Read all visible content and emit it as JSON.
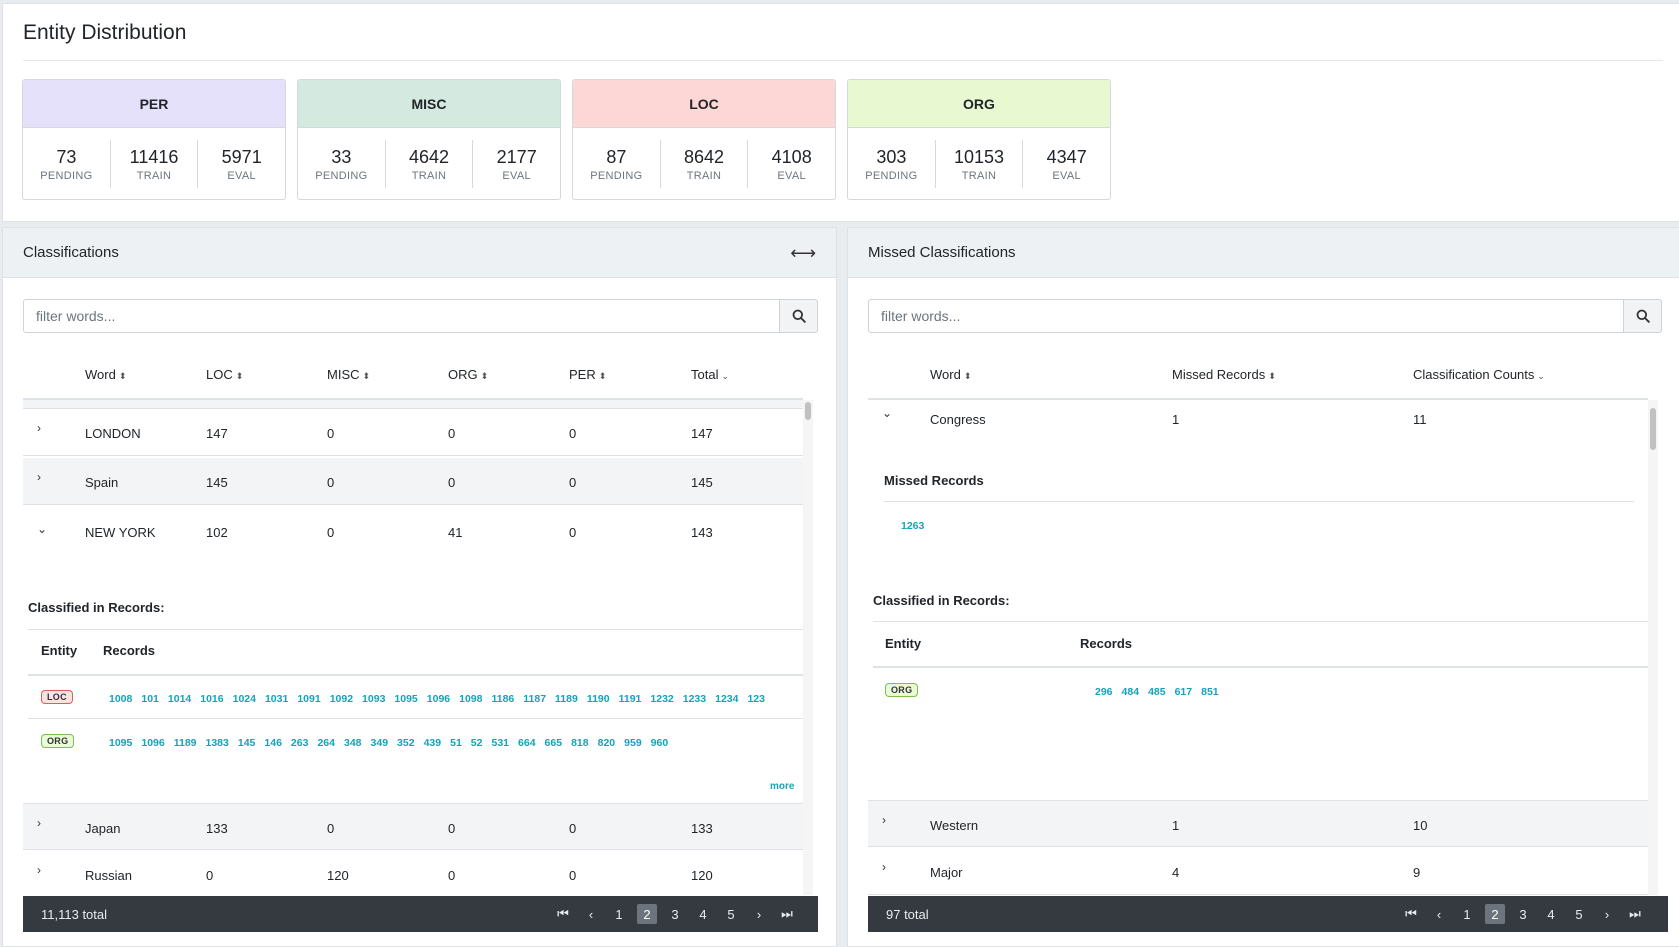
{
  "page_title": "Entity Distribution",
  "entities": [
    {
      "name": "PER",
      "color": "#e5e1fb",
      "pending": "73",
      "train": "11416",
      "eval": "5971"
    },
    {
      "name": "MISC",
      "color": "#d4e9df",
      "pending": "33",
      "train": "4642",
      "eval": "2177"
    },
    {
      "name": "LOC",
      "color": "#fdd6d6",
      "pending": "87",
      "train": "8642",
      "eval": "4108"
    },
    {
      "name": "ORG",
      "color": "#e8f8d0",
      "pending": "303",
      "train": "10153",
      "eval": "4347"
    }
  ],
  "stat_labels": {
    "pending": "PENDING",
    "train": "TRAIN",
    "eval": "EVAL"
  },
  "classifications": {
    "title": "Classifications",
    "expand_icon": "arrows-horizontal-icon",
    "search_placeholder": "filter words...",
    "columns": [
      "Word",
      "LOC",
      "MISC",
      "ORG",
      "PER",
      "Total"
    ],
    "rows": [
      {
        "word": "LONDON",
        "loc": "147",
        "misc": "0",
        "org": "0",
        "per": "0",
        "total": "147",
        "expanded": false
      },
      {
        "word": "Spain",
        "loc": "145",
        "misc": "0",
        "org": "0",
        "per": "0",
        "total": "145",
        "expanded": false
      },
      {
        "word": "NEW YORK",
        "loc": "102",
        "misc": "0",
        "org": "41",
        "per": "0",
        "total": "143",
        "expanded": true
      }
    ],
    "expanded_detail": {
      "title": "Classified in Records:",
      "col_entity": "Entity",
      "col_records": "Records",
      "entries": [
        {
          "entity": "LOC",
          "records": [
            "1008",
            "101",
            "1014",
            "1016",
            "1024",
            "1031",
            "1091",
            "1092",
            "1093",
            "1095",
            "1096",
            "1098",
            "1186",
            "1187",
            "1189",
            "1190",
            "1191",
            "1232",
            "1233",
            "1234",
            "123"
          ]
        },
        {
          "entity": "ORG",
          "records": [
            "1095",
            "1096",
            "1189",
            "1383",
            "145",
            "146",
            "263",
            "264",
            "348",
            "349",
            "352",
            "439",
            "51",
            "52",
            "531",
            "664",
            "665",
            "818",
            "820",
            "959",
            "960"
          ]
        }
      ],
      "more": "more"
    },
    "rows_after": [
      {
        "word": "Japan",
        "loc": "133",
        "misc": "0",
        "org": "0",
        "per": "0",
        "total": "133"
      },
      {
        "word": "Russian",
        "loc": "0",
        "misc": "120",
        "org": "0",
        "per": "0",
        "total": "120"
      }
    ],
    "footer_total": "11,113 total",
    "pages": [
      "1",
      "2",
      "3",
      "4",
      "5"
    ],
    "active_page": "2"
  },
  "missed": {
    "title": "Missed Classifications",
    "search_placeholder": "filter words...",
    "columns": [
      "Word",
      "Missed Records",
      "Classification Counts"
    ],
    "expanded_row": {
      "word": "Congress",
      "missed": "1",
      "counts": "11"
    },
    "missed_records_title": "Missed Records",
    "missed_records": [
      "1263"
    ],
    "classified_title": "Classified in Records:",
    "col_entity": "Entity",
    "col_records": "Records",
    "classified_entries": [
      {
        "entity": "ORG",
        "records": [
          "296",
          "484",
          "485",
          "617",
          "851"
        ]
      }
    ],
    "rows_after": [
      {
        "word": "Western",
        "missed": "1",
        "counts": "10"
      },
      {
        "word": "Major",
        "missed": "4",
        "counts": "9"
      }
    ],
    "footer_total": "97 total",
    "pages": [
      "1",
      "2",
      "3",
      "4",
      "5"
    ],
    "active_page": "2"
  }
}
